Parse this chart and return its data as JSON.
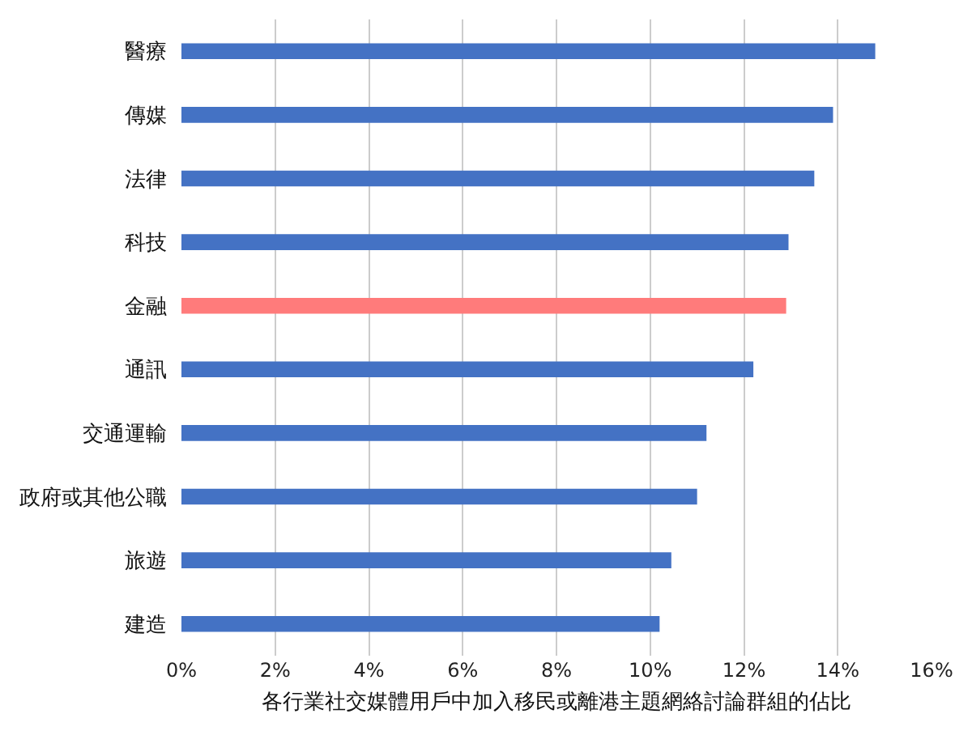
{
  "chart_data": {
    "type": "bar",
    "orientation": "horizontal",
    "xlabel": "各行業社交媒體用戶中加入移民或離港主題網絡討論群組的佔比",
    "categories": [
      "醫療",
      "傳媒",
      "法律",
      "科技",
      "金融",
      "通訊",
      "交通運輸",
      "政府或其他公職",
      "旅遊",
      "建造"
    ],
    "values": [
      14.8,
      13.9,
      13.5,
      12.95,
      12.9,
      12.2,
      11.2,
      11.0,
      10.45,
      10.2
    ],
    "colors": [
      "#4472c4",
      "#4472c4",
      "#4472c4",
      "#4472c4",
      "#ff7b7b",
      "#4472c4",
      "#4472c4",
      "#4472c4",
      "#4472c4",
      "#4472c4"
    ],
    "xlim": [
      0,
      16
    ],
    "xticks": [
      {
        "value": 0,
        "label": "0%"
      },
      {
        "value": 2,
        "label": "2%"
      },
      {
        "value": 4,
        "label": "4%"
      },
      {
        "value": 6,
        "label": "6%"
      },
      {
        "value": 8,
        "label": "8%"
      },
      {
        "value": 10,
        "label": "10%"
      },
      {
        "value": 12,
        "label": "12%"
      },
      {
        "value": 14,
        "label": "14%"
      },
      {
        "value": 16,
        "label": "16%"
      }
    ],
    "grid": "x"
  }
}
